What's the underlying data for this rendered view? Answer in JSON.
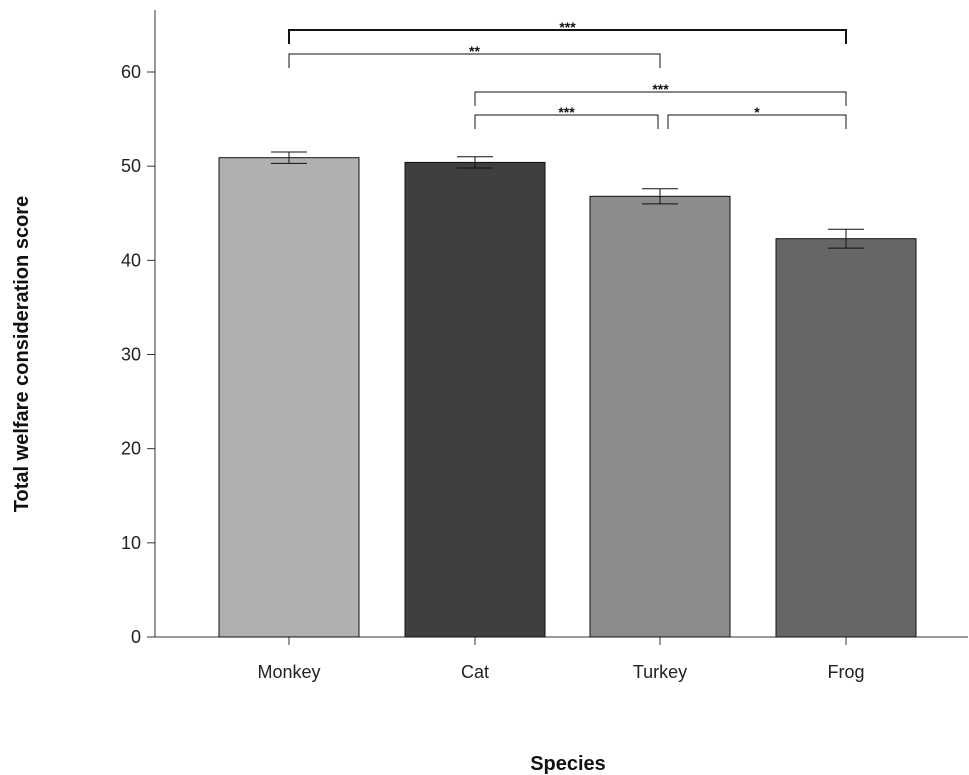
{
  "chart_data": {
    "type": "bar",
    "categories": [
      "Monkey",
      "Cat",
      "Turkey",
      "Frog"
    ],
    "values": [
      50.9,
      50.4,
      46.8,
      42.3
    ],
    "errors": [
      0.6,
      0.6,
      0.8,
      1.0
    ],
    "colors": [
      "#b0b0b0",
      "#3f3f3f",
      "#8c8c8c",
      "#666666"
    ],
    "xlabel": "Species",
    "ylabel": "Total welfare consideration score",
    "ylim": [
      0,
      66
    ],
    "yticks": [
      0,
      10,
      20,
      30,
      40,
      50,
      60
    ],
    "grid": false,
    "significance": [
      {
        "from": "Monkey",
        "to": "Frog",
        "label": "***",
        "level": 64
      },
      {
        "from": "Monkey",
        "to": "Turkey",
        "label": "**",
        "level": 61
      },
      {
        "from": "Cat",
        "to": "Frog",
        "label": "***",
        "level": 57
      },
      {
        "from": "Cat",
        "to": "Turkey",
        "label": "***",
        "level": 554
      },
      {
        "from": "Turkey",
        "to": "Frog",
        "label": "*",
        "level": 554
      }
    ]
  }
}
